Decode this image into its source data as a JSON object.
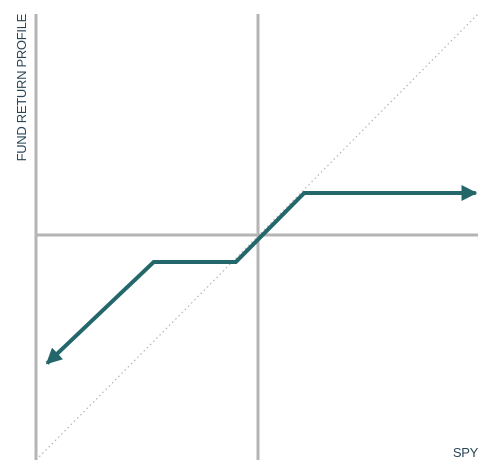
{
  "chart_data": {
    "type": "line",
    "xlabel": "SPY",
    "ylabel": "FUND RETURN PROFILE",
    "xlim": [
      -1,
      1
    ],
    "ylim": [
      -1,
      1
    ],
    "grid": false,
    "legend": "none",
    "colors": {
      "axis": "#b5b5b5",
      "line": "#23676b",
      "reference": "#b5b5b5",
      "label": "#2a4757"
    },
    "series": [
      {
        "values": [
          {
            "x": -0.95,
            "y": -0.57
          },
          {
            "x": -0.47,
            "y": -0.12
          },
          {
            "x": -0.1,
            "y": -0.12
          },
          {
            "x": 0.21,
            "y": 0.19
          },
          {
            "x": 0.99,
            "y": 0.19
          }
        ],
        "arrows": "both"
      },
      {
        "values": [
          {
            "x": -1,
            "y": -1
          },
          {
            "x": 1,
            "y": 1
          }
        ],
        "style": "dotted"
      }
    ]
  }
}
